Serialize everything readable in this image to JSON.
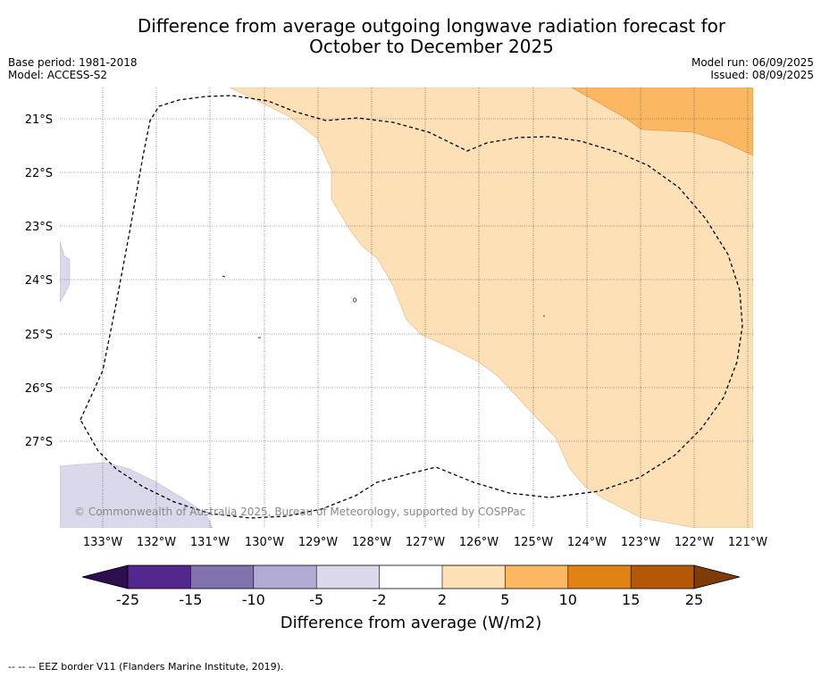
{
  "title": {
    "line1": "Difference from average outgoing longwave radiation forecast for",
    "line2": "October to December 2025"
  },
  "meta_left": {
    "base_period": "Base period: 1981-2018",
    "model": "Model: ACCESS-S2"
  },
  "meta_right": {
    "model_run": "Model run: 06/09/2025",
    "issued": "Issued: 08/09/2025"
  },
  "map": {
    "lat_labels": [
      "21°S",
      "22°S",
      "23°S",
      "24°S",
      "25°S",
      "26°S",
      "27°S"
    ],
    "lon_labels": [
      "133°W",
      "132°W",
      "131°W",
      "130°W",
      "129°W",
      "128°W",
      "127°W",
      "126°W",
      "125°W",
      "124°W",
      "123°W",
      "122°W",
      "121°W"
    ],
    "copyright": "© Commonwealth of Australia 2025, Bureau of Meteorology, supported by COSPPac"
  },
  "colorbar": {
    "ticks": [
      "-25",
      "-15",
      "-10",
      "-5",
      "-2",
      "2",
      "5",
      "10",
      "15",
      "25"
    ],
    "label": "Difference from average (W/m2)",
    "colors": [
      "#2d0e4e",
      "#54278f",
      "#7f72ad",
      "#b1abd3",
      "#d9d9eb",
      "#ffffff",
      "#fde0b6",
      "#fbb762",
      "#e08214",
      "#b35806",
      "#7f3b08"
    ]
  },
  "footer": {
    "legend": "-- -- -- EEZ border V11 (Flanders Marine Institute, 2019)."
  }
}
